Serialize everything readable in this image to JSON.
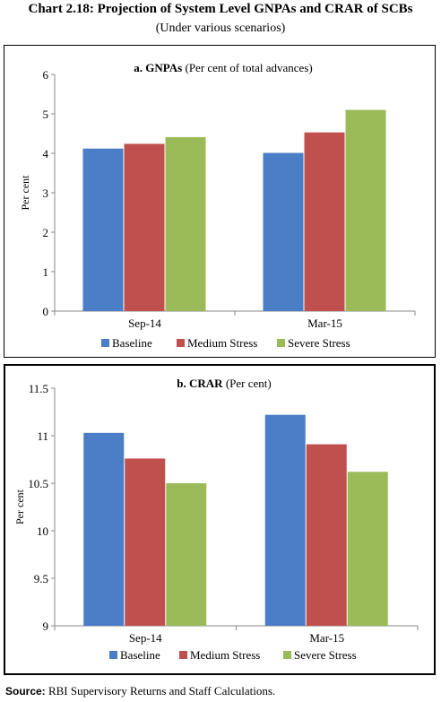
{
  "header": {
    "title": "Chart 2.18: Projection of System Level GNPAs and CRAR of SCBs",
    "subtitle": "(Under various scenarios)"
  },
  "footer": {
    "source_label": "Source:",
    "source_text": "RBI Supervisory Returns and Staff Calculations."
  },
  "colors": {
    "baseline": "#4a7ec6",
    "medium_stress": "#c0504d",
    "severe_stress": "#9bbb59"
  },
  "chart_data": [
    {
      "type": "bar",
      "title": "a. GNPAs",
      "subtitle": "(Per cent of total advances)",
      "xlabel": "",
      "ylabel": "Per cent",
      "categories": [
        "Sep-14",
        "Mar-15"
      ],
      "ylim": [
        0,
        6
      ],
      "yticks": [
        "0",
        "1",
        "2",
        "3",
        "4",
        "5",
        "6"
      ],
      "series": [
        {
          "name": "Baseline",
          "values": [
            4.12,
            4.01
          ]
        },
        {
          "name": "Medium Stress",
          "values": [
            4.24,
            4.53
          ]
        },
        {
          "name": "Severe Stress",
          "values": [
            4.41,
            5.1
          ]
        }
      ],
      "legend": "bottom",
      "grid": false
    },
    {
      "type": "bar",
      "title": "b. CRAR",
      "subtitle": "(Per cent)",
      "xlabel": "",
      "ylabel": "Per cent",
      "categories": [
        "Sep-14",
        "Mar-15"
      ],
      "ylim": [
        9,
        11.5
      ],
      "yticks": [
        "9",
        "9.5",
        "10",
        "10.5",
        "11",
        "11.5"
      ],
      "series": [
        {
          "name": "Baseline",
          "values": [
            11.03,
            11.22
          ]
        },
        {
          "name": "Medium Stress",
          "values": [
            10.76,
            10.91
          ]
        },
        {
          "name": "Severe Stress",
          "values": [
            10.5,
            10.62
          ]
        }
      ],
      "legend": "bottom",
      "grid": false
    }
  ]
}
